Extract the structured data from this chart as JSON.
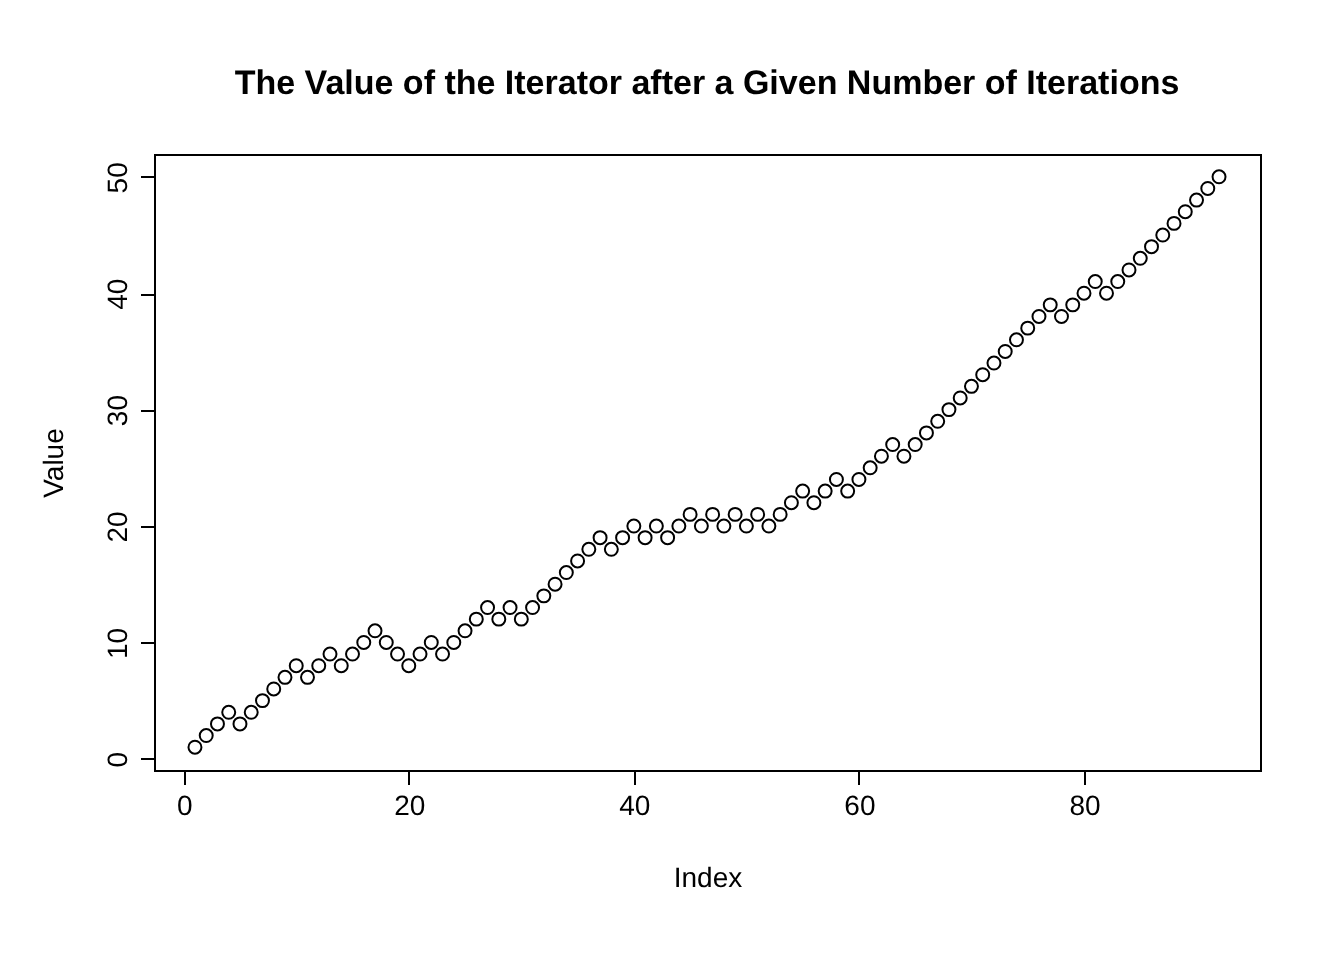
{
  "chart_data": {
    "type": "scatter",
    "title": "The Value of the Iterator after a Given Number of Iterations",
    "xlabel": "Index",
    "ylabel": "Value",
    "x": [
      1,
      2,
      3,
      4,
      5,
      6,
      7,
      8,
      9,
      10,
      11,
      12,
      13,
      14,
      15,
      16,
      17,
      18,
      19,
      20,
      21,
      22,
      23,
      24,
      25,
      26,
      27,
      28,
      29,
      30,
      31,
      32,
      33,
      34,
      35,
      36,
      37,
      38,
      39,
      40,
      41,
      42,
      43,
      44,
      45,
      46,
      47,
      48,
      49,
      50,
      51,
      52,
      53,
      54,
      55,
      56,
      57,
      58,
      59,
      60,
      61,
      62,
      63,
      64,
      65,
      66,
      67,
      68,
      69,
      70,
      71,
      72,
      73,
      74,
      75,
      76,
      77,
      78,
      79,
      80,
      81,
      82,
      83,
      84,
      85,
      86,
      87,
      88,
      89,
      90,
      91,
      92
    ],
    "values": [
      1,
      2,
      3,
      4,
      3,
      4,
      5,
      6,
      7,
      8,
      7,
      8,
      9,
      8,
      9,
      10,
      11,
      10,
      9,
      8,
      9,
      10,
      9,
      10,
      11,
      12,
      13,
      12,
      13,
      12,
      13,
      14,
      15,
      16,
      17,
      18,
      19,
      18,
      19,
      20,
      19,
      20,
      19,
      20,
      21,
      20,
      21,
      20,
      21,
      20,
      21,
      20,
      21,
      22,
      23,
      22,
      23,
      24,
      23,
      24,
      25,
      26,
      27,
      26,
      27,
      28,
      29,
      30,
      31,
      32,
      33,
      34,
      35,
      36,
      37,
      38,
      39,
      38,
      39,
      40,
      41,
      40,
      41,
      42,
      43,
      44,
      45,
      46,
      47,
      48,
      49,
      50
    ],
    "xlim": [
      -2.64,
      95.64
    ],
    "xticks": [
      0,
      20,
      40,
      60,
      80
    ],
    "ylim": [
      -0.96,
      51.96
    ],
    "yticks": [
      0,
      10,
      20,
      30,
      40,
      50
    ],
    "marker": "circle"
  }
}
